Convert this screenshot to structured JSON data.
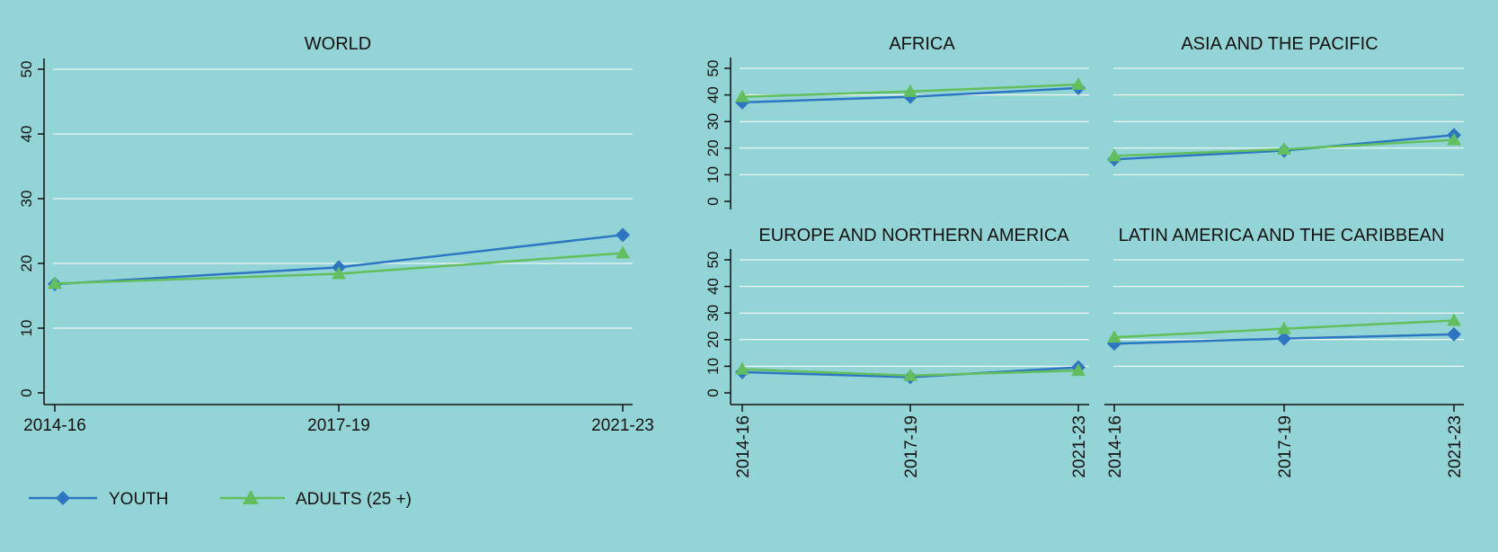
{
  "colors": {
    "background": "#93d5d6",
    "youth": "#2e76c2",
    "adults": "#63bf5d",
    "grid": "#ffffff"
  },
  "legend": {
    "youth_label": "YOUTH",
    "youth_marker": "diamond",
    "adults_label": "ADULTS (25 +)",
    "adults_marker": "triangle",
    "placement": "bottom-left"
  },
  "chart_data": [
    {
      "type": "line",
      "title": "WORLD",
      "categories": [
        "2014-16",
        "2017-19",
        "2021-23"
      ],
      "ylim": [
        0,
        50
      ],
      "yticks": [
        0,
        10,
        20,
        30,
        40,
        50
      ],
      "grid": true,
      "series": [
        {
          "name": "YOUTH",
          "values": [
            16.8,
            19.4,
            24.4
          ]
        },
        {
          "name": "ADULTS (25 +)",
          "values": [
            16.9,
            18.4,
            21.6
          ]
        }
      ]
    },
    {
      "type": "line",
      "title": "AFRICA",
      "categories": [
        "2014-16",
        "2017-19",
        "2021-23"
      ],
      "ylim": [
        0,
        50
      ],
      "yticks": [
        0,
        10,
        20,
        30,
        40,
        50
      ],
      "grid": true,
      "series": [
        {
          "name": "YOUTH",
          "values": [
            37.2,
            39.3,
            42.6
          ]
        },
        {
          "name": "ADULTS (25 +)",
          "values": [
            39.3,
            41.3,
            43.9
          ]
        }
      ]
    },
    {
      "type": "line",
      "title": "ASIA AND THE PACIFIC",
      "categories": [
        "2014-16",
        "2017-19",
        "2021-23"
      ],
      "ylim": [
        0,
        50
      ],
      "yticks": [
        0,
        10,
        20,
        30,
        40,
        50
      ],
      "grid": true,
      "series": [
        {
          "name": "YOUTH",
          "values": [
            15.8,
            19.1,
            24.9
          ]
        },
        {
          "name": "ADULTS (25 +)",
          "values": [
            17.1,
            19.6,
            23.1
          ]
        }
      ]
    },
    {
      "type": "line",
      "title": "EUROPE AND NORTHERN AMERICA",
      "categories": [
        "2014-16",
        "2017-19",
        "2021-23"
      ],
      "ylim": [
        0,
        50
      ],
      "yticks": [
        0,
        10,
        20,
        30,
        40,
        50
      ],
      "grid": true,
      "series": [
        {
          "name": "YOUTH",
          "values": [
            7.8,
            5.9,
            9.6
          ]
        },
        {
          "name": "ADULTS (25 +)",
          "values": [
            8.9,
            6.5,
            8.4
          ]
        }
      ]
    },
    {
      "type": "line",
      "title": "LATIN AMERICA AND THE CARIBBEAN",
      "categories": [
        "2014-16",
        "2017-19",
        "2021-23"
      ],
      "ylim": [
        0,
        50
      ],
      "yticks": [
        0,
        10,
        20,
        30,
        40,
        50
      ],
      "grid": true,
      "series": [
        {
          "name": "YOUTH",
          "values": [
            18.5,
            20.4,
            22.0
          ]
        },
        {
          "name": "ADULTS (25 +)",
          "values": [
            20.9,
            24.1,
            27.2
          ]
        }
      ]
    }
  ]
}
